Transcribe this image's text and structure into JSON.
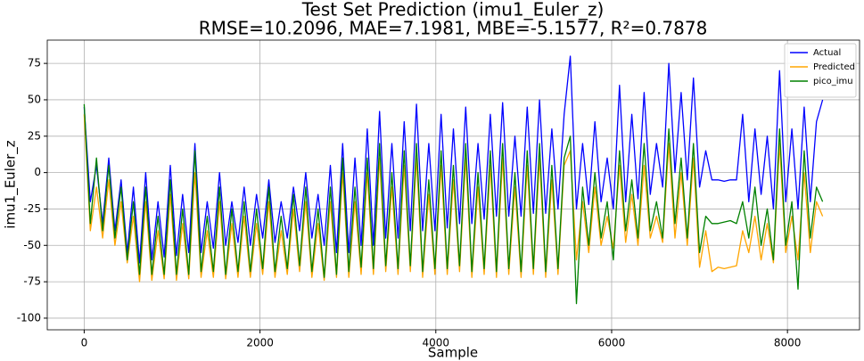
{
  "chart_data": {
    "type": "line",
    "title": "Test Set Prediction (imu1_Euler_z)",
    "subtitle": "RMSE=10.2096, MAE=7.1981, MBE=-5.1577, R²=0.7878",
    "xlabel": "Sample",
    "ylabel": "imu1_Euler_z",
    "xlim": [
      -420,
      8820
    ],
    "ylim": [
      -108,
      91
    ],
    "xticks": [
      0,
      2000,
      4000,
      6000,
      8000
    ],
    "yticks": [
      -100,
      -75,
      -50,
      -25,
      0,
      25,
      50,
      75
    ],
    "grid": true,
    "legend": "upper right",
    "x": [
      0,
      70,
      140,
      210,
      280,
      350,
      420,
      490,
      560,
      630,
      700,
      770,
      840,
      910,
      980,
      1050,
      1120,
      1190,
      1260,
      1330,
      1400,
      1470,
      1540,
      1610,
      1680,
      1750,
      1820,
      1890,
      1960,
      2030,
      2100,
      2170,
      2240,
      2310,
      2380,
      2450,
      2520,
      2590,
      2660,
      2730,
      2800,
      2870,
      2940,
      3010,
      3080,
      3150,
      3220,
      3290,
      3360,
      3430,
      3500,
      3570,
      3640,
      3710,
      3780,
      3850,
      3920,
      3990,
      4060,
      4130,
      4200,
      4270,
      4340,
      4410,
      4480,
      4550,
      4620,
      4690,
      4760,
      4830,
      4900,
      4970,
      5040,
      5110,
      5180,
      5250,
      5320,
      5390,
      5460,
      5530,
      5600,
      5670,
      5740,
      5810,
      5880,
      5950,
      6020,
      6090,
      6160,
      6230,
      6300,
      6370,
      6440,
      6510,
      6580,
      6650,
      6720,
      6790,
      6860,
      6930,
      7000,
      7070,
      7140,
      7210,
      7280,
      7350,
      7420,
      7490,
      7560,
      7630,
      7700,
      7770,
      7840,
      7910,
      7980,
      8050,
      8120,
      8190,
      8260,
      8330,
      8400
    ],
    "series": [
      {
        "name": "Actual",
        "color": "#0000ff",
        "values": [
          45,
          -20,
          5,
          -35,
          10,
          -40,
          -5,
          -55,
          -10,
          -62,
          0,
          -60,
          -20,
          -58,
          5,
          -57,
          -15,
          -55,
          20,
          -55,
          -20,
          -52,
          0,
          -50,
          -20,
          -48,
          -10,
          -50,
          -15,
          -45,
          -5,
          -48,
          -20,
          -45,
          -10,
          -40,
          0,
          -45,
          -15,
          -50,
          5,
          -55,
          20,
          -55,
          10,
          -50,
          30,
          -50,
          42,
          -45,
          20,
          -45,
          35,
          -40,
          47,
          -40,
          20,
          -40,
          40,
          -38,
          30,
          -35,
          45,
          -35,
          20,
          -32,
          40,
          -30,
          48,
          -30,
          25,
          -30,
          45,
          -28,
          50,
          -28,
          30,
          -25,
          40,
          80,
          -25,
          20,
          -22,
          35,
          -20,
          10,
          -25,
          60,
          -20,
          40,
          -18,
          55,
          -15,
          20,
          -10,
          75,
          0,
          55,
          -5,
          65,
          -10,
          15,
          -5,
          -5,
          -6,
          -5,
          -5,
          40,
          -20,
          30,
          -15,
          25,
          -25,
          70,
          -20,
          30,
          -25,
          45,
          -20,
          35,
          50
        ]
      },
      {
        "name": "Predicted",
        "color": "#ffa500",
        "values": [
          40,
          -40,
          -10,
          -45,
          -5,
          -50,
          -20,
          -62,
          -30,
          -75,
          -20,
          -74,
          -40,
          -73,
          -15,
          -74,
          -35,
          -73,
          0,
          -72,
          -40,
          -72,
          -20,
          -73,
          -35,
          -72,
          -30,
          -72,
          -35,
          -70,
          -20,
          -72,
          -40,
          -70,
          -25,
          -68,
          -20,
          -72,
          -35,
          -74,
          -20,
          -72,
          0,
          -72,
          -20,
          -70,
          0,
          -70,
          10,
          -68,
          -10,
          -70,
          5,
          -68,
          10,
          -72,
          -15,
          -70,
          5,
          -70,
          -5,
          -68,
          10,
          -72,
          -10,
          -70,
          5,
          -72,
          10,
          -70,
          -10,
          -72,
          5,
          -70,
          10,
          -72,
          -5,
          -70,
          5,
          15,
          -60,
          -20,
          -55,
          -10,
          -50,
          -30,
          -52,
          5,
          -48,
          -15,
          -50,
          5,
          -45,
          -30,
          -48,
          20,
          -45,
          0,
          -50,
          10,
          -65,
          -40,
          -68,
          -65,
          -66,
          -65,
          -64,
          -40,
          -55,
          -30,
          -60,
          -35,
          -62,
          20,
          -55,
          -30,
          -60,
          0,
          -55,
          -20,
          -30
        ]
      },
      {
        "name": "pico_imu",
        "color": "#008000",
        "values": [
          47,
          -35,
          10,
          -40,
          5,
          -45,
          -10,
          -60,
          -20,
          -70,
          -10,
          -70,
          -30,
          -70,
          -5,
          -70,
          -25,
          -70,
          15,
          -68,
          -30,
          -68,
          -10,
          -70,
          -25,
          -68,
          -20,
          -68,
          -25,
          -66,
          -10,
          -68,
          -30,
          -66,
          -15,
          -64,
          -10,
          -68,
          -25,
          -72,
          -10,
          -70,
          10,
          -68,
          -10,
          -65,
          10,
          -66,
          20,
          -64,
          0,
          -66,
          15,
          -64,
          20,
          -68,
          -5,
          -66,
          15,
          -66,
          5,
          -64,
          20,
          -68,
          0,
          -66,
          15,
          -68,
          20,
          -66,
          0,
          -68,
          15,
          -66,
          20,
          -68,
          5,
          -66,
          10,
          25,
          -90,
          -10,
          -50,
          0,
          -45,
          -20,
          -60,
          15,
          -40,
          -5,
          -45,
          20,
          -40,
          -20,
          -45,
          30,
          -35,
          10,
          -45,
          20,
          -55,
          -30,
          -35,
          -35,
          -34,
          -33,
          -35,
          -20,
          -45,
          -10,
          -50,
          -25,
          -60,
          30,
          -50,
          -20,
          -80,
          15,
          -45,
          -10,
          -20
        ]
      }
    ]
  }
}
